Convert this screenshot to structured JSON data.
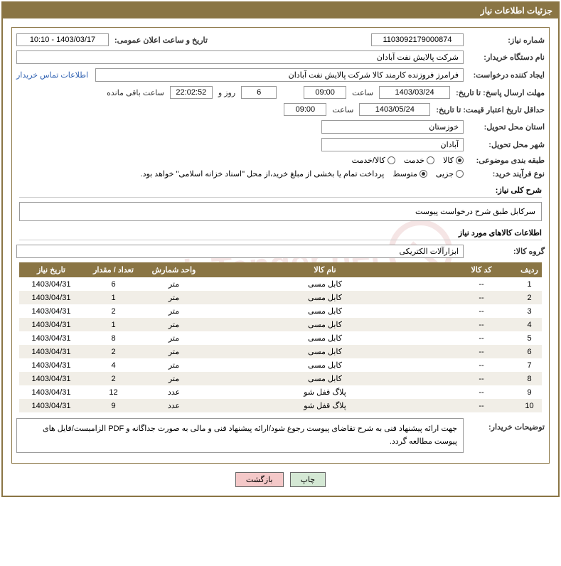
{
  "header": {
    "title": "جزئیات اطلاعات نیاز"
  },
  "labels": {
    "need_no": "شماره نیاز:",
    "announce_dt": "تاریخ و ساعت اعلان عمومی:",
    "buyer_org": "نام دستگاه خریدار:",
    "request_creator": "ایجاد کننده درخواست:",
    "contact_link": "اطلاعات تماس خریدار",
    "deadline_label": "مهلت ارسال پاسخ: تا تاریخ:",
    "time_label": "ساعت",
    "days_and": "روز و",
    "remaining": "ساعت باقی مانده",
    "validity_label": "حداقل تاریخ اعتبار قیمت: تا تاریخ:",
    "province": "استان محل تحویل:",
    "city": "شهر محل تحویل:",
    "class": "طبقه بندی موضوعی:",
    "purchase_type": "نوع فرآیند خرید:",
    "funding_note": "پرداخت تمام یا بخشی از مبلغ خرید،از محل \"اسناد خزانه اسلامی\" خواهد بود.",
    "summary_title": "شرح کلی نیاز:",
    "goods_info_title": "اطلاعات کالاهای مورد نیاز",
    "goods_group": "گروه کالا:",
    "buyer_notes": "توضیحات خریدار:"
  },
  "fields": {
    "need_no": "1103092179000874",
    "announce_datetime": "1403/03/17 - 10:10",
    "buyer_org": "شرکت پالایش نفت آبادان",
    "request_creator": "فرامرز فروزنده کارمند کالا شرکت پالایش نفت آبادان",
    "deadline_date": "1403/03/24",
    "deadline_time": "09:00",
    "deadline_days": "6",
    "deadline_remaining": "22:02:52",
    "validity_date": "1403/05/24",
    "validity_time": "09:00",
    "province": "خوزستان",
    "city": "آبادان",
    "summary": "سرکابل طبق شرح درخواست پیوست",
    "goods_group_value": "ابزارآلات الکتریکی",
    "buyer_notes_text": "جهت ارائه پیشنهاد فنی به شرح تقاضای پیوست رجوع شود/ارائه پیشنهاد فنی و مالی به صورت جداگانه و PDF الزامیست/فایل های پیوست مطالعه گردد."
  },
  "class_options": {
    "o1": "کالا",
    "o2": "خدمت",
    "o3": "کالا/خدمت",
    "selected": 0
  },
  "purchase_options": {
    "o1": "جزیی",
    "o2": "متوسط",
    "selected": 1
  },
  "table": {
    "headers": {
      "idx": "ردیف",
      "code": "کد کالا",
      "name": "نام کالا",
      "unit": "واحد شمارش",
      "qty": "تعداد / مقدار",
      "date": "تاریخ نیاز"
    },
    "rows": [
      {
        "idx": "1",
        "code": "--",
        "name": "کابل مسی",
        "unit": "متر",
        "qty": "6",
        "date": "1403/04/31"
      },
      {
        "idx": "2",
        "code": "--",
        "name": "کابل مسی",
        "unit": "متر",
        "qty": "1",
        "date": "1403/04/31"
      },
      {
        "idx": "3",
        "code": "--",
        "name": "کابل مسی",
        "unit": "متر",
        "qty": "2",
        "date": "1403/04/31"
      },
      {
        "idx": "4",
        "code": "--",
        "name": "کابل مسی",
        "unit": "متر",
        "qty": "1",
        "date": "1403/04/31"
      },
      {
        "idx": "5",
        "code": "--",
        "name": "کابل مسی",
        "unit": "متر",
        "qty": "8",
        "date": "1403/04/31"
      },
      {
        "idx": "6",
        "code": "--",
        "name": "کابل مسی",
        "unit": "متر",
        "qty": "2",
        "date": "1403/04/31"
      },
      {
        "idx": "7",
        "code": "--",
        "name": "کابل مسی",
        "unit": "متر",
        "qty": "4",
        "date": "1403/04/31"
      },
      {
        "idx": "8",
        "code": "--",
        "name": "کابل مسی",
        "unit": "متر",
        "qty": "2",
        "date": "1403/04/31"
      },
      {
        "idx": "9",
        "code": "--",
        "name": "پلاگ قفل شو",
        "unit": "عدد",
        "qty": "12",
        "date": "1403/04/31"
      },
      {
        "idx": "10",
        "code": "--",
        "name": "پلاگ قفل شو",
        "unit": "عدد",
        "qty": "9",
        "date": "1403/04/31"
      }
    ]
  },
  "buttons": {
    "print": "چاپ",
    "back": "بازگشت"
  },
  "watermark": "AriaTender.net"
}
